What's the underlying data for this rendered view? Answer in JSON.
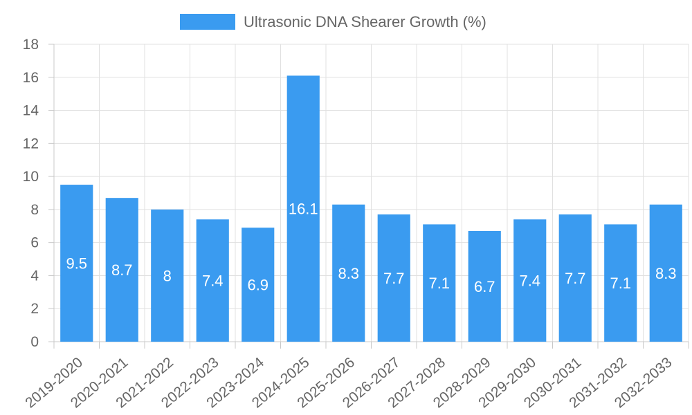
{
  "chart_data": {
    "type": "bar",
    "title": "",
    "xlabel": "",
    "ylabel": "",
    "legend": {
      "position": "top-center",
      "entries": [
        "Ultrasonic DNA Shearer Growth (%)"
      ]
    },
    "categories": [
      "2019-2020",
      "2020-2021",
      "2021-2022",
      "2022-2023",
      "2023-2024",
      "2024-2025",
      "2025-2026",
      "2026-2027",
      "2027-2028",
      "2028-2029",
      "2029-2030",
      "2030-2031",
      "2031-2032",
      "2032-2033"
    ],
    "series": [
      {
        "name": "Ultrasonic DNA Shearer Growth (%)",
        "values": [
          9.5,
          8.7,
          8,
          7.4,
          6.9,
          16.1,
          8.3,
          7.7,
          7.1,
          6.7,
          7.4,
          7.7,
          7.1,
          8.3
        ],
        "color": "#3a9bf0",
        "data_labels": [
          "9.5",
          "8.7",
          "8",
          "7.4",
          "6.9",
          "16.1",
          "8.3",
          "7.7",
          "7.1",
          "6.7",
          "7.4",
          "7.7",
          "7.1",
          "8.3"
        ]
      }
    ],
    "ylim": [
      0,
      18
    ],
    "yticks": [
      "0",
      "2",
      "4",
      "6",
      "8",
      "10",
      "12",
      "14",
      "16",
      "18"
    ],
    "grid": true
  }
}
